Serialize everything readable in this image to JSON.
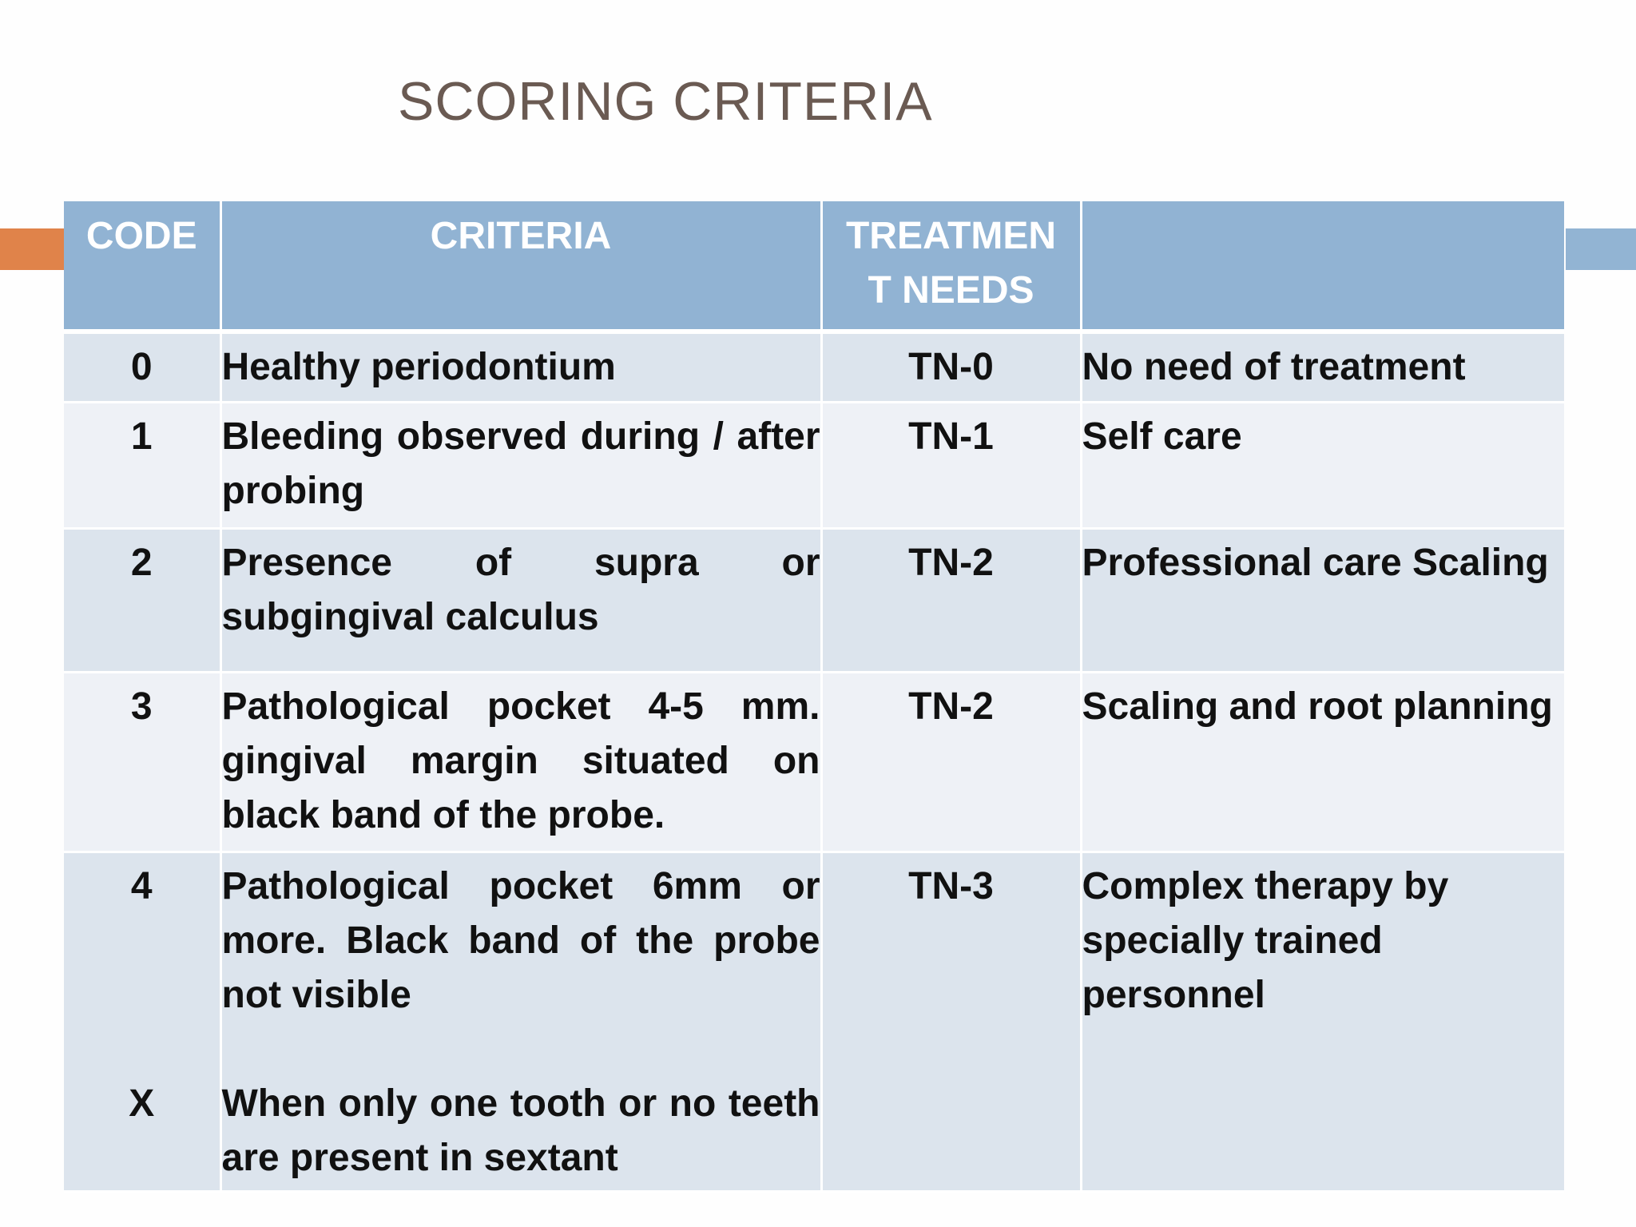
{
  "title": "SCORING CRITERIA",
  "colors": {
    "header_bg": "#91b3d3",
    "row_dark": "#dce4ed",
    "row_light": "#eef1f6",
    "accent_left": "#e0834a",
    "accent_right": "#92b4d3",
    "title_color": "#6a5a52"
  },
  "table": {
    "headers": [
      "CODE",
      "CRITERIA",
      "TREATMEN\nT NEEDS",
      ""
    ],
    "rows": [
      {
        "code": "0",
        "criteria": "Healthy periodontium",
        "tn": "TN-0",
        "treatment": "No need of treatment"
      },
      {
        "code": "1",
        "criteria": "Bleeding observed during / after probing",
        "tn": "TN-1",
        "treatment": "Self care"
      },
      {
        "code": "2",
        "criteria": "Presence of supra or subgingival calculus",
        "tn": "TN-2",
        "treatment": "Professional care Scaling"
      },
      {
        "code": "3",
        "criteria": "Pathological pocket 4-5 mm. gingival margin situated on black band of the probe.",
        "tn": "TN-2",
        "treatment": "Scaling and root planning"
      },
      {
        "code": "4",
        "criteria": "Pathological pocket 6mm or more. Black band of the probe not visible",
        "code_x": "X",
        "criteria_x": "When only one tooth or no teeth are present in sextant",
        "tn": "TN-3",
        "treatment": "Complex therapy by specially trained personnel"
      }
    ]
  }
}
